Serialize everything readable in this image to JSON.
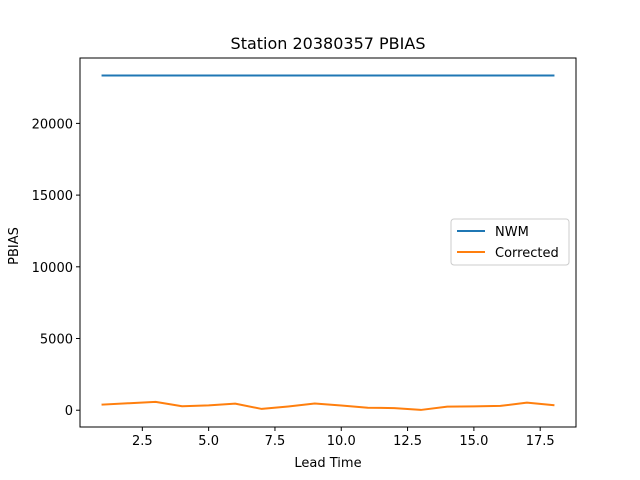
{
  "chart_data": {
    "type": "line",
    "title": "Station 20380357 PBIAS",
    "xlabel": "Lead Time",
    "ylabel": "PBIAS",
    "x": [
      1,
      2,
      3,
      4,
      5,
      6,
      7,
      8,
      9,
      10,
      11,
      12,
      13,
      14,
      15,
      16,
      17,
      18
    ],
    "xlim": [
      0.15,
      18.85
    ],
    "ylim": [
      -1170,
      24560
    ],
    "xticks": [
      2.5,
      5.0,
      7.5,
      10.0,
      12.5,
      15.0,
      17.5
    ],
    "xtick_labels": [
      "2.5",
      "5.0",
      "7.5",
      "10.0",
      "12.5",
      "15.0",
      "17.5"
    ],
    "yticks": [
      0,
      5000,
      10000,
      15000,
      20000
    ],
    "ytick_labels": [
      "0",
      "5000",
      "10000",
      "15000",
      "20000"
    ],
    "grid": false,
    "legend_position": "center-right",
    "series": [
      {
        "name": "NWM",
        "color": "#1f77b4",
        "values": [
          23340,
          23340,
          23340,
          23340,
          23340,
          23340,
          23340,
          23340,
          23340,
          23340,
          23340,
          23340,
          23340,
          23340,
          23340,
          23340,
          23340,
          23340
        ]
      },
      {
        "name": "Corrected",
        "color": "#ff7f0e",
        "values": [
          390,
          490,
          580,
          280,
          340,
          460,
          90,
          260,
          470,
          330,
          170,
          150,
          20,
          250,
          270,
          300,
          530,
          350
        ]
      }
    ]
  }
}
